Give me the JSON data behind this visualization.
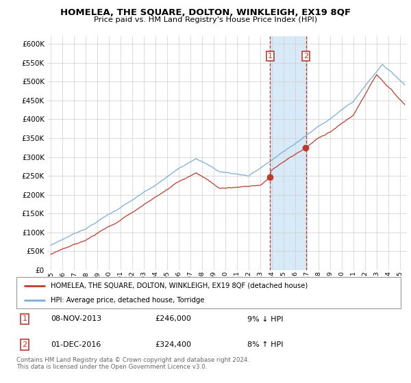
{
  "title": "HOMELEA, THE SQUARE, DOLTON, WINKLEIGH, EX19 8QF",
  "subtitle": "Price paid vs. HM Land Registry's House Price Index (HPI)",
  "legend_line1": "HOMELEA, THE SQUARE, DOLTON, WINKLEIGH, EX19 8QF (detached house)",
  "legend_line2": "HPI: Average price, detached house, Torridge",
  "sale1_date": "08-NOV-2013",
  "sale1_price": "£246,000",
  "sale1_pct": "9% ↓ HPI",
  "sale2_date": "01-DEC-2016",
  "sale2_price": "£324,400",
  "sale2_pct": "8% ↑ HPI",
  "footer": "Contains HM Land Registry data © Crown copyright and database right 2024.\nThis data is licensed under the Open Government Licence v3.0.",
  "red_color": "#c0392b",
  "blue_color": "#7aacdc",
  "shade_color": "#d8eaf8",
  "ylim": [
    0,
    620000
  ],
  "ytick_vals": [
    0,
    50000,
    100000,
    150000,
    200000,
    250000,
    300000,
    350000,
    400000,
    450000,
    500000,
    550000,
    600000
  ],
  "sale1_year": 2013.85,
  "sale2_year": 2016.92,
  "xstart": 1995,
  "xend": 2025
}
